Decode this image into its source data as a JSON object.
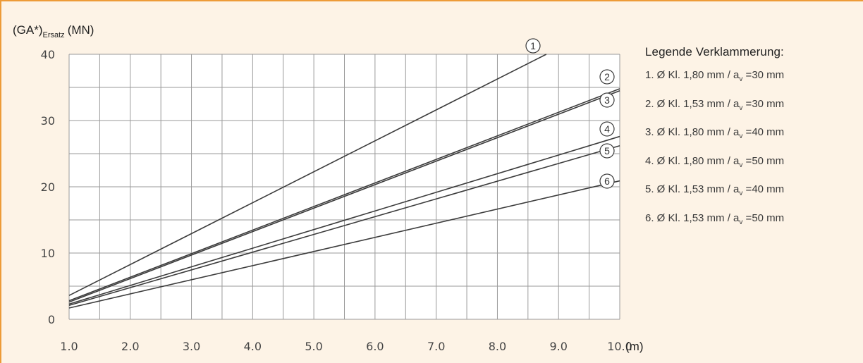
{
  "colors": {
    "accent_border": "#ed9b38",
    "panel_background": "#fdf3e6",
    "plot_background": "#ffffff",
    "grid": "#9a9a9a",
    "line": "#3c3c3c",
    "axis_text": "#444444"
  },
  "chart_data": {
    "type": "line",
    "ylabel_main": "(GA*)",
    "ylabel_sub": "Ersatz",
    "ylabel_unit": "(MN)",
    "xlabel": "(m)",
    "xlim": [
      1.0,
      10.0
    ],
    "ylim": [
      0,
      40
    ],
    "x_ticks": [
      "1.0",
      "2.0",
      "3.0",
      "4.0",
      "5.0",
      "6.0",
      "7.0",
      "8.0",
      "9.0",
      "10.0"
    ],
    "x_tick_values": [
      1,
      2,
      3,
      4,
      5,
      6,
      7,
      8,
      9,
      10
    ],
    "y_ticks": [
      "0",
      "10",
      "20",
      "30",
      "40"
    ],
    "y_tick_values": [
      0,
      10,
      20,
      30,
      40
    ],
    "grid": true,
    "legend_position": "right",
    "series": [
      {
        "name": "1",
        "x": [
          1.0,
          8.8
        ],
        "y": [
          3.6,
          40.0
        ]
      },
      {
        "name": "2",
        "x": [
          1.0,
          10.0
        ],
        "y": [
          2.8,
          34.8
        ]
      },
      {
        "name": "3",
        "x": [
          1.0,
          10.0
        ],
        "y": [
          2.6,
          34.5
        ]
      },
      {
        "name": "4",
        "x": [
          1.0,
          10.0
        ],
        "y": [
          2.3,
          27.6
        ]
      },
      {
        "name": "5",
        "x": [
          1.0,
          10.0
        ],
        "y": [
          2.1,
          26.2
        ]
      },
      {
        "name": "6",
        "x": [
          1.0,
          10.0
        ],
        "y": [
          1.7,
          20.9
        ]
      }
    ]
  },
  "legend": {
    "title": "Legende Verklammerung:",
    "items": [
      {
        "pre": "1. Ø Kl. 1,80 mm / a",
        "sub": "v",
        "post": " =30 mm"
      },
      {
        "pre": "2. Ø Kl. 1,53 mm / a",
        "sub": "v",
        "post": " =30 mm"
      },
      {
        "pre": "3. Ø Kl. 1,80 mm / a",
        "sub": "v",
        "post": " =40 mm"
      },
      {
        "pre": "4. Ø Kl. 1,80 mm / a",
        "sub": "v",
        "post": " =50 mm"
      },
      {
        "pre": "5. Ø Kl. 1,53 mm / a",
        "sub": "v",
        "post": " =40 mm"
      },
      {
        "pre": "6. Ø Kl. 1,53 mm / a",
        "sub": "v",
        "post": " =50 mm"
      }
    ]
  }
}
